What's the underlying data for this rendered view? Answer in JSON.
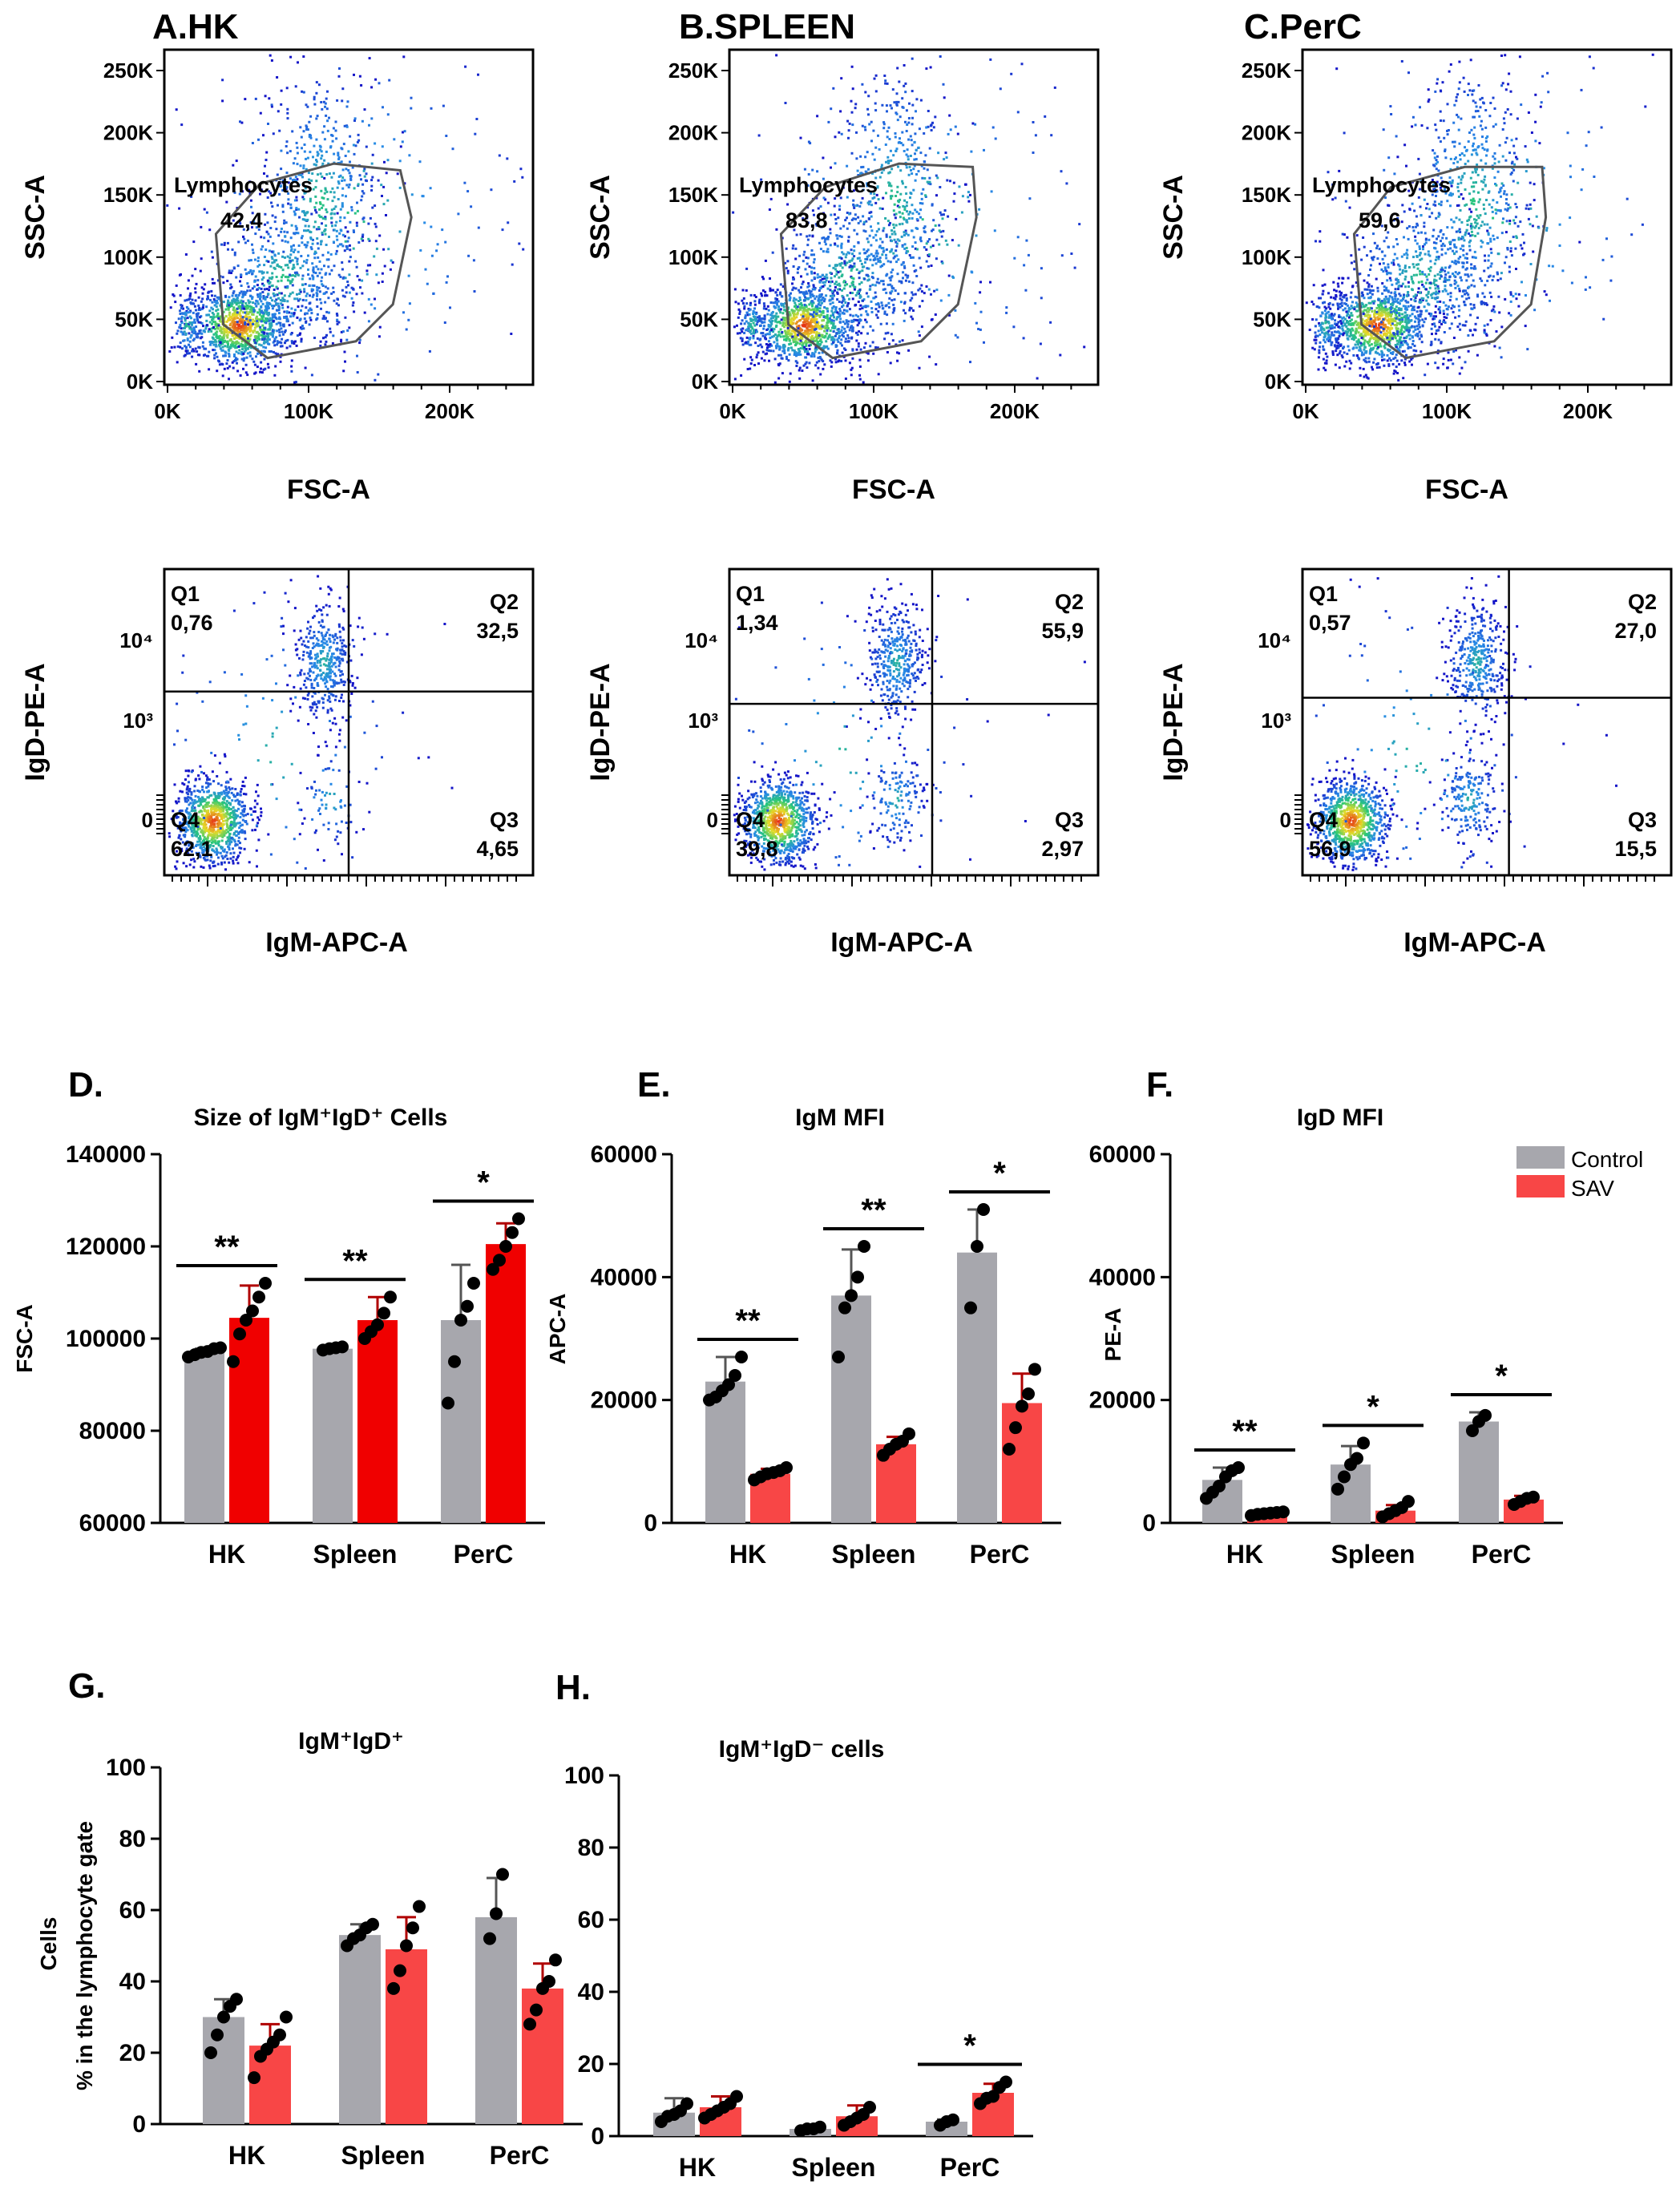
{
  "colors": {
    "control": "#a7a7ad",
    "sav_dark": "#f00000",
    "sav_light": "#f84646",
    "dot": "#000000"
  },
  "legend": {
    "control": "Control",
    "sav": "SAV"
  },
  "flow_panels": [
    {
      "letter": "A.HK",
      "scatter": {
        "xlabel": "FSC-A",
        "ylabel": "SSC-A",
        "xticks": [
          "0K",
          "100K",
          "200K"
        ],
        "yticks": [
          "0K",
          "50K",
          "100K",
          "150K",
          "200K",
          "250K"
        ],
        "gate_name": "Lymphocytes",
        "gate_value": "42,4"
      },
      "quadrant": {
        "xlabel": "IgM-APC-A",
        "ylabel": "IgD-PE-A",
        "yticks": [
          "10⁴",
          "10³",
          "0"
        ],
        "q1": {
          "name": "Q1",
          "value": "0,76"
        },
        "q2": {
          "name": "Q2",
          "value": "32,5"
        },
        "q3": {
          "name": "Q3",
          "value": "4,65"
        },
        "q4": {
          "name": "Q4",
          "value": "62,1"
        }
      }
    },
    {
      "letter": "B.SPLEEN",
      "scatter": {
        "xlabel": "FSC-A",
        "ylabel": "SSC-A",
        "xticks": [
          "0K",
          "100K",
          "200K"
        ],
        "yticks": [
          "0K",
          "50K",
          "100K",
          "150K",
          "200K",
          "250K"
        ],
        "gate_name": "Lymphocytes",
        "gate_value": "83,8"
      },
      "quadrant": {
        "xlabel": "IgM-APC-A",
        "ylabel": "IgD-PE-A",
        "yticks": [
          "10⁴",
          "10³",
          "0"
        ],
        "q1": {
          "name": "Q1",
          "value": "1,34"
        },
        "q2": {
          "name": "Q2",
          "value": "55,9"
        },
        "q3": {
          "name": "Q3",
          "value": "2,97"
        },
        "q4": {
          "name": "Q4",
          "value": "39,8"
        }
      }
    },
    {
      "letter": "C.PerC",
      "scatter": {
        "xlabel": "FSC-A",
        "ylabel": "SSC-A",
        "xticks": [
          "0K",
          "100K",
          "200K"
        ],
        "yticks": [
          "0K",
          "50K",
          "100K",
          "150K",
          "200K",
          "250K"
        ],
        "gate_name": "Lymphocytes",
        "gate_value": "59,6"
      },
      "quadrant": {
        "xlabel": "IgM-APC-A",
        "ylabel": "IgD-PE-A",
        "yticks": [
          "10⁴",
          "10³",
          "0"
        ],
        "q1": {
          "name": "Q1",
          "value": "0,57"
        },
        "q2": {
          "name": "Q2",
          "value": "27,0"
        },
        "q3": {
          "name": "Q3",
          "value": "15,5"
        },
        "q4": {
          "name": "Q4",
          "value": "56,9"
        }
      }
    }
  ],
  "chart_data": [
    {
      "panel": "D.",
      "type": "bar",
      "title": "Size of IgM⁺IgD⁺ Cells",
      "ylabel": "FSC-A",
      "ylim": [
        60000,
        140000
      ],
      "yticks": [
        "60000",
        "80000",
        "100000",
        "120000",
        "140000"
      ],
      "categories": [
        "HK",
        "Spleen",
        "PerC"
      ],
      "series": [
        {
          "name": "Control",
          "values": [
            97000,
            97800,
            104000
          ],
          "errors": [
            800,
            500,
            12000
          ],
          "points": [
            [
              96000,
              96500,
              97000,
              97200,
              97800,
              98000
            ],
            [
              97500,
              97800,
              98000,
              98200
            ],
            [
              86000,
              95000,
              104000,
              107000,
              112000
            ]
          ]
        },
        {
          "name": "SAV",
          "values": [
            104500,
            104000,
            120500
          ],
          "errors": [
            7000,
            5000,
            4500
          ],
          "points": [
            [
              95000,
              101000,
              104000,
              106000,
              109000,
              112000
            ],
            [
              100000,
              101500,
              103000,
              105500,
              109000
            ],
            [
              115000,
              117000,
              120000,
              123000,
              126000
            ]
          ]
        }
      ],
      "significance": [
        "**",
        "**",
        "*"
      ]
    },
    {
      "panel": "E.",
      "type": "bar",
      "title": "IgM MFI",
      "ylabel": "APC-A",
      "ylim": [
        0,
        60000
      ],
      "yticks": [
        "0",
        "20000",
        "40000",
        "60000"
      ],
      "categories": [
        "HK",
        "Spleen",
        "PerC"
      ],
      "series": [
        {
          "name": "Control",
          "values": [
            23000,
            37000,
            44000
          ],
          "errors": [
            4000,
            7500,
            7000
          ],
          "points": [
            [
              20000,
              20500,
              21500,
              22500,
              24000,
              27000
            ],
            [
              27000,
              35000,
              37000,
              40000,
              45000
            ],
            [
              35000,
              45000,
              51000
            ]
          ]
        },
        {
          "name": "SAV",
          "values": [
            8000,
            12800,
            19500
          ],
          "errors": [
            800,
            1200,
            4800
          ],
          "points": [
            [
              7000,
              7500,
              8000,
              8200,
              8500,
              9000
            ],
            [
              11000,
              12000,
              12800,
              13300,
              14500
            ],
            [
              12000,
              15500,
              19000,
              21000,
              25000
            ]
          ]
        }
      ],
      "significance": [
        "**",
        "**",
        "*"
      ]
    },
    {
      "panel": "F.",
      "type": "bar",
      "title": "IgD MFI",
      "ylabel": "PE-A",
      "ylim": [
        0,
        60000
      ],
      "yticks": [
        "0",
        "20000",
        "40000",
        "60000"
      ],
      "categories": [
        "HK",
        "Spleen",
        "PerC"
      ],
      "series": [
        {
          "name": "Control",
          "values": [
            7000,
            9500,
            16500
          ],
          "errors": [
            2000,
            3000,
            1500
          ],
          "points": [
            [
              4000,
              5000,
              6000,
              7500,
              8500,
              9000
            ],
            [
              5500,
              7500,
              9500,
              10500,
              13000
            ],
            [
              15000,
              16500,
              17500
            ]
          ]
        },
        {
          "name": "SAV",
          "values": [
            1500,
            2000,
            3800
          ],
          "errors": [
            300,
            900,
            600
          ],
          "points": [
            [
              1200,
              1400,
              1500,
              1600,
              1700,
              1800
            ],
            [
              1000,
              1500,
              2000,
              2500,
              3500
            ],
            [
              3000,
              3500,
              4000,
              4200
            ]
          ]
        }
      ],
      "significance": [
        "**",
        "*",
        "*"
      ]
    },
    {
      "panel": "G.",
      "type": "bar",
      "title": "IgM⁺IgD⁺",
      "ylabel_line1": "Cells",
      "ylabel_line2": "% in the lymphocyte gate",
      "ylim": [
        0,
        100
      ],
      "yticks": [
        "0",
        "20",
        "40",
        "60",
        "80",
        "100"
      ],
      "categories": [
        "HK",
        "Spleen",
        "PerC"
      ],
      "series": [
        {
          "name": "Control",
          "values": [
            30,
            53,
            58
          ],
          "errors": [
            5,
            3,
            11
          ],
          "points": [
            [
              20,
              25,
              30,
              33,
              35
            ],
            [
              50,
              52,
              53,
              55,
              56
            ],
            [
              52,
              59,
              70
            ]
          ]
        },
        {
          "name": "SAV",
          "values": [
            22,
            49,
            38
          ],
          "errors": [
            6,
            9,
            7
          ],
          "points": [
            [
              13,
              19,
              21,
              23,
              25,
              30
            ],
            [
              38,
              43,
              50,
              55,
              61
            ],
            [
              28,
              32,
              38,
              40,
              46
            ]
          ]
        }
      ],
      "significance": []
    },
    {
      "panel": "H.",
      "type": "bar",
      "title": "IgM⁺IgD⁻ cells",
      "ylim": [
        0,
        100
      ],
      "yticks": [
        "0",
        "20",
        "40",
        "60",
        "80",
        "100"
      ],
      "categories": [
        "HK",
        "Spleen",
        "PerC"
      ],
      "series": [
        {
          "name": "Control",
          "values": [
            6.5,
            2,
            4
          ],
          "errors": [
            4,
            0.5,
            0.6
          ],
          "points": [
            [
              4,
              5.5,
              6,
              7,
              9
            ],
            [
              1.5,
              2,
              2,
              2.5
            ],
            [
              3,
              4,
              4.5
            ]
          ]
        },
        {
          "name": "SAV",
          "values": [
            8,
            5.5,
            12
          ],
          "errors": [
            3,
            3,
            2.5
          ],
          "points": [
            [
              5,
              6,
              7,
              8,
              9,
              11
            ],
            [
              3,
              4,
              5,
              6,
              8
            ],
            [
              9,
              10.5,
              11,
              13.5,
              15
            ]
          ]
        }
      ],
      "significance": [
        "",
        "",
        "*"
      ]
    }
  ]
}
